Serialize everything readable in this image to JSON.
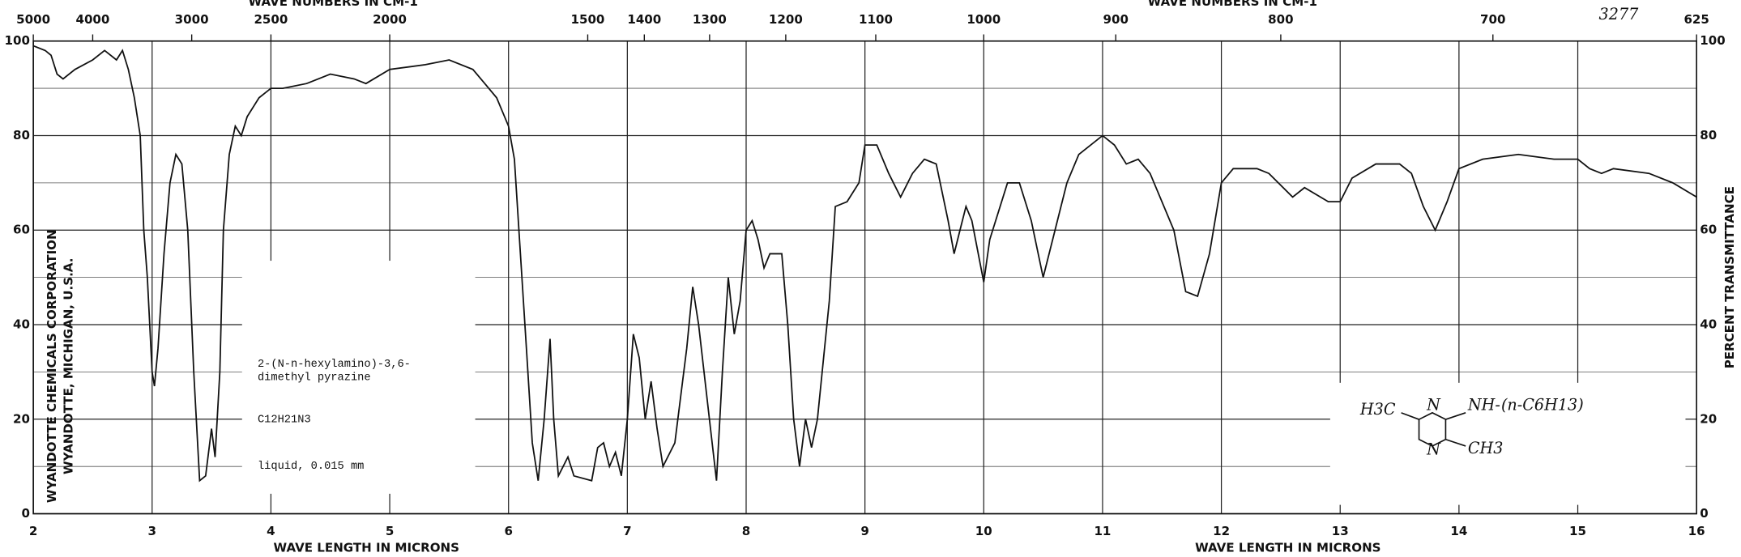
{
  "chart_data": {
    "type": "line",
    "title": "3277",
    "x_label": "WAVE LENGTH IN MICRONS",
    "x2_label": "WAVE NUMBERS IN CM-1",
    "y_label": "PERCENT TRANSMITTANCE",
    "xlim": [
      2,
      16
    ],
    "xticks": [
      2,
      3,
      4,
      5,
      6,
      7,
      8,
      9,
      10,
      11,
      12,
      13,
      14,
      15,
      16
    ],
    "x2lim": [
      5000,
      625
    ],
    "x2ticks": [
      5000,
      4000,
      3000,
      2500,
      2000,
      1500,
      1400,
      1300,
      1200,
      1100,
      1000,
      900,
      800,
      700,
      625
    ],
    "ylim": [
      0,
      100
    ],
    "yticks": [
      0,
      20,
      40,
      60,
      80,
      100
    ],
    "yminorticks": [
      10,
      30,
      50,
      70,
      90
    ],
    "grid": true,
    "color": "#111111",
    "x": [
      2.0,
      2.1,
      2.15,
      2.2,
      2.25,
      2.35,
      2.5,
      2.6,
      2.7,
      2.75,
      2.8,
      2.85,
      2.9,
      2.93,
      2.96,
      3.0,
      3.02,
      3.05,
      3.1,
      3.15,
      3.2,
      3.25,
      3.3,
      3.35,
      3.4,
      3.45,
      3.5,
      3.53,
      3.57,
      3.6,
      3.65,
      3.7,
      3.75,
      3.8,
      3.9,
      4.0,
      4.1,
      4.3,
      4.5,
      4.7,
      4.8,
      5.0,
      5.3,
      5.5,
      5.7,
      5.8,
      5.9,
      6.0,
      6.05,
      6.1,
      6.15,
      6.2,
      6.25,
      6.3,
      6.35,
      6.38,
      6.42,
      6.5,
      6.55,
      6.7,
      6.75,
      6.8,
      6.85,
      6.9,
      6.95,
      7.0,
      7.05,
      7.1,
      7.15,
      7.2,
      7.25,
      7.3,
      7.4,
      7.5,
      7.55,
      7.6,
      7.7,
      7.75,
      7.8,
      7.85,
      7.9,
      7.95,
      8.0,
      8.05,
      8.1,
      8.15,
      8.2,
      8.3,
      8.35,
      8.4,
      8.45,
      8.5,
      8.55,
      8.6,
      8.7,
      8.75,
      8.85,
      8.95,
      9.0,
      9.1,
      9.2,
      9.3,
      9.4,
      9.5,
      9.6,
      9.7,
      9.75,
      9.8,
      9.85,
      9.9,
      10.0,
      10.05,
      10.2,
      10.3,
      10.4,
      10.5,
      10.6,
      10.7,
      10.8,
      11.0,
      11.1,
      11.2,
      11.3,
      11.4,
      11.6,
      11.7,
      11.8,
      11.9,
      12.0,
      12.1,
      12.3,
      12.4,
      12.6,
      12.7,
      12.9,
      13.0,
      13.1,
      13.3,
      13.5,
      13.6,
      13.7,
      13.8,
      13.9,
      14.0,
      14.2,
      14.5,
      14.8,
      15.0,
      15.1,
      15.2,
      15.3,
      15.6,
      15.8,
      16.0
    ],
    "values": [
      99,
      98,
      97,
      93,
      92,
      94,
      96,
      98,
      96,
      98,
      94,
      88,
      80,
      60,
      50,
      30,
      27,
      35,
      55,
      70,
      76,
      74,
      60,
      30,
      7,
      8,
      18,
      12,
      30,
      60,
      76,
      82,
      80,
      84,
      88,
      90,
      90,
      91,
      93,
      92,
      91,
      94,
      95,
      96,
      94,
      91,
      88,
      82,
      75,
      55,
      35,
      15,
      7,
      20,
      37,
      20,
      8,
      12,
      8,
      7,
      14,
      15,
      10,
      13,
      8,
      20,
      38,
      33,
      20,
      28,
      18,
      10,
      15,
      35,
      48,
      40,
      18,
      7,
      30,
      50,
      38,
      45,
      60,
      62,
      58,
      52,
      55,
      55,
      40,
      20,
      10,
      20,
      14,
      20,
      45,
      65,
      66,
      70,
      78,
      78,
      72,
      67,
      72,
      75,
      74,
      62,
      55,
      60,
      65,
      62,
      49,
      58,
      70,
      70,
      62,
      50,
      60,
      70,
      76,
      80,
      78,
      74,
      75,
      72,
      60,
      47,
      46,
      55,
      70,
      73,
      73,
      72,
      67,
      69,
      66,
      66,
      71,
      74,
      74,
      72,
      65,
      60,
      66,
      73,
      75,
      76,
      75,
      75,
      73,
      72,
      73,
      72,
      70,
      67
    ],
    "company": "WYANDOTTE CHEMICALS CORPORATION",
    "location": "WYANDOTTE, MICHIGAN, U.S.A.",
    "sample": [
      "2-(N-n-hexylamino)-3,6-",
      "dimethyl pyrazine"
    ],
    "formula": "C12H21N3",
    "sample_state": "liquid, 0.015 mm",
    "structure": [
      "H3C",
      "N",
      "N",
      "NH-",
      "(n-C6H13)",
      "CH3"
    ]
  }
}
